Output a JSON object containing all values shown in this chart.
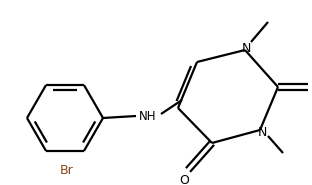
{
  "background_color": "#ffffff",
  "line_color": "#000000",
  "label_color_brown": "#8B4513",
  "bond_lw": 1.6,
  "figsize": [
    3.12,
    1.85
  ],
  "dpi": 100,
  "xlim": [
    0,
    312
  ],
  "ylim": [
    0,
    185
  ]
}
